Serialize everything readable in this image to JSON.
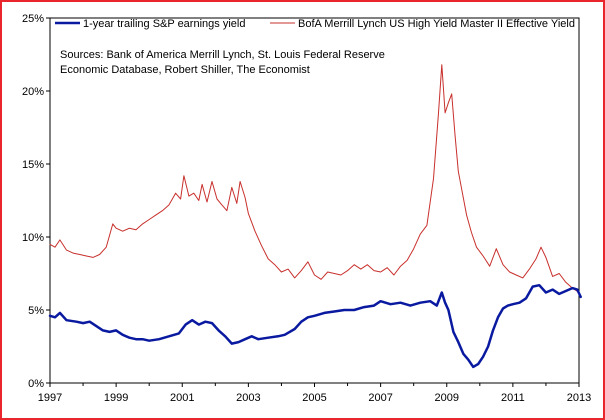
{
  "chart_data": {
    "type": "line",
    "title": "",
    "xlabel": "",
    "ylabel": "",
    "xlim": [
      1997,
      2013
    ],
    "ylim": [
      0,
      25
    ],
    "x_ticks": [
      "1997",
      "1999",
      "2001",
      "2003",
      "2005",
      "2007",
      "2009",
      "2011",
      "2013"
    ],
    "x_tick_values": [
      1997,
      1999,
      2001,
      2003,
      2005,
      2007,
      2009,
      2011,
      2013
    ],
    "y_ticks": [
      "0%",
      "5%",
      "10%",
      "15%",
      "20%",
      "25%"
    ],
    "y_tick_values": [
      0,
      5,
      10,
      15,
      20,
      25
    ],
    "grid": false,
    "legend_position": "top",
    "source_lines": [
      "Sources: Bank of America Merrill Lynch, St. Louis Federal Reserve",
      "Economic Database, Robert Shiller, The Economist"
    ],
    "series": [
      {
        "name": "1-year trailing S&P earnings yield",
        "color": "#0a1aa0",
        "x": [
          1997.0,
          1997.15,
          1997.3,
          1997.5,
          1997.8,
          1998.0,
          1998.2,
          1998.4,
          1998.6,
          1998.8,
          1999.0,
          1999.2,
          1999.4,
          1999.6,
          1999.8,
          2000.0,
          2000.3,
          2000.6,
          2000.9,
          2001.1,
          2001.3,
          2001.5,
          2001.7,
          2001.9,
          2002.1,
          2002.3,
          2002.5,
          2002.7,
          2002.9,
          2003.1,
          2003.3,
          2003.6,
          2003.9,
          2004.1,
          2004.4,
          2004.6,
          2004.8,
          2005.0,
          2005.3,
          2005.6,
          2005.9,
          2006.2,
          2006.5,
          2006.8,
          2007.0,
          2007.3,
          2007.6,
          2007.9,
          2008.2,
          2008.5,
          2008.7,
          2008.85,
          2008.95,
          2009.05,
          2009.2,
          2009.35,
          2009.5,
          2009.65,
          2009.8,
          2009.95,
          2010.1,
          2010.25,
          2010.4,
          2010.55,
          2010.7,
          2010.85,
          2011.0,
          2011.2,
          2011.4,
          2011.6,
          2011.8,
          2012.0,
          2012.2,
          2012.4,
          2012.6,
          2012.8,
          2012.95,
          2013.05
        ],
        "values": [
          4.6,
          4.5,
          4.8,
          4.3,
          4.2,
          4.1,
          4.2,
          3.9,
          3.6,
          3.5,
          3.6,
          3.3,
          3.1,
          3.0,
          3.0,
          2.9,
          3.0,
          3.2,
          3.4,
          4.0,
          4.3,
          4.0,
          4.2,
          4.1,
          3.6,
          3.2,
          2.7,
          2.8,
          3.0,
          3.2,
          3.0,
          3.1,
          3.2,
          3.3,
          3.7,
          4.2,
          4.5,
          4.6,
          4.8,
          4.9,
          5.0,
          5.0,
          5.2,
          5.3,
          5.6,
          5.4,
          5.5,
          5.3,
          5.5,
          5.6,
          5.3,
          6.2,
          5.5,
          5.0,
          3.5,
          2.8,
          2.0,
          1.6,
          1.1,
          1.3,
          1.8,
          2.5,
          3.6,
          4.5,
          5.1,
          5.3,
          5.4,
          5.5,
          5.8,
          6.6,
          6.7,
          6.2,
          6.4,
          6.1,
          6.3,
          6.5,
          6.4,
          5.9
        ]
      },
      {
        "name": "BofA Merrill Lynch US High Yield Master II Effective Yield",
        "color": "#c8302c",
        "x": [
          1997.0,
          1997.15,
          1997.3,
          1997.5,
          1997.7,
          1997.9,
          1998.1,
          1998.3,
          1998.5,
          1998.7,
          1998.9,
          1999.0,
          1999.2,
          1999.4,
          1999.6,
          1999.8,
          2000.0,
          2000.2,
          2000.4,
          2000.6,
          2000.8,
          2000.95,
          2001.05,
          2001.2,
          2001.35,
          2001.5,
          2001.6,
          2001.75,
          2001.9,
          2002.05,
          2002.2,
          2002.35,
          2002.5,
          2002.65,
          2002.75,
          2002.9,
          2003.0,
          2003.2,
          2003.4,
          2003.6,
          2003.8,
          2004.0,
          2004.2,
          2004.4,
          2004.6,
          2004.8,
          2005.0,
          2005.2,
          2005.4,
          2005.6,
          2005.8,
          2006.0,
          2006.2,
          2006.4,
          2006.6,
          2006.8,
          2007.0,
          2007.2,
          2007.4,
          2007.6,
          2007.8,
          2008.0,
          2008.2,
          2008.4,
          2008.6,
          2008.75,
          2008.85,
          2008.95,
          2009.05,
          2009.15,
          2009.25,
          2009.35,
          2009.45,
          2009.6,
          2009.75,
          2009.9,
          2010.1,
          2010.3,
          2010.5,
          2010.7,
          2010.9,
          2011.1,
          2011.3,
          2011.5,
          2011.7,
          2011.85,
          2012.0,
          2012.2,
          2012.4,
          2012.6,
          2012.8,
          2013.0,
          2013.05
        ],
        "values": [
          9.5,
          9.3,
          9.8,
          9.1,
          8.9,
          8.8,
          8.7,
          8.6,
          8.8,
          9.3,
          10.9,
          10.6,
          10.4,
          10.6,
          10.5,
          10.9,
          11.2,
          11.5,
          11.8,
          12.2,
          13.0,
          12.6,
          14.2,
          12.8,
          13.0,
          12.5,
          13.6,
          12.4,
          13.8,
          12.6,
          12.2,
          11.8,
          13.4,
          12.3,
          13.8,
          12.7,
          11.6,
          10.4,
          9.4,
          8.5,
          8.1,
          7.6,
          7.8,
          7.2,
          7.7,
          8.3,
          7.4,
          7.1,
          7.6,
          7.5,
          7.4,
          7.7,
          8.1,
          7.8,
          8.1,
          7.7,
          7.6,
          7.9,
          7.4,
          8.0,
          8.4,
          9.2,
          10.2,
          10.8,
          14.0,
          18.5,
          21.8,
          18.5,
          19.2,
          19.8,
          17.0,
          14.5,
          13.3,
          11.5,
          10.3,
          9.3,
          8.7,
          8.0,
          9.2,
          8.1,
          7.6,
          7.4,
          7.2,
          7.8,
          8.5,
          9.3,
          8.6,
          7.3,
          7.5,
          6.9,
          6.5,
          6.2,
          5.9
        ]
      }
    ]
  }
}
